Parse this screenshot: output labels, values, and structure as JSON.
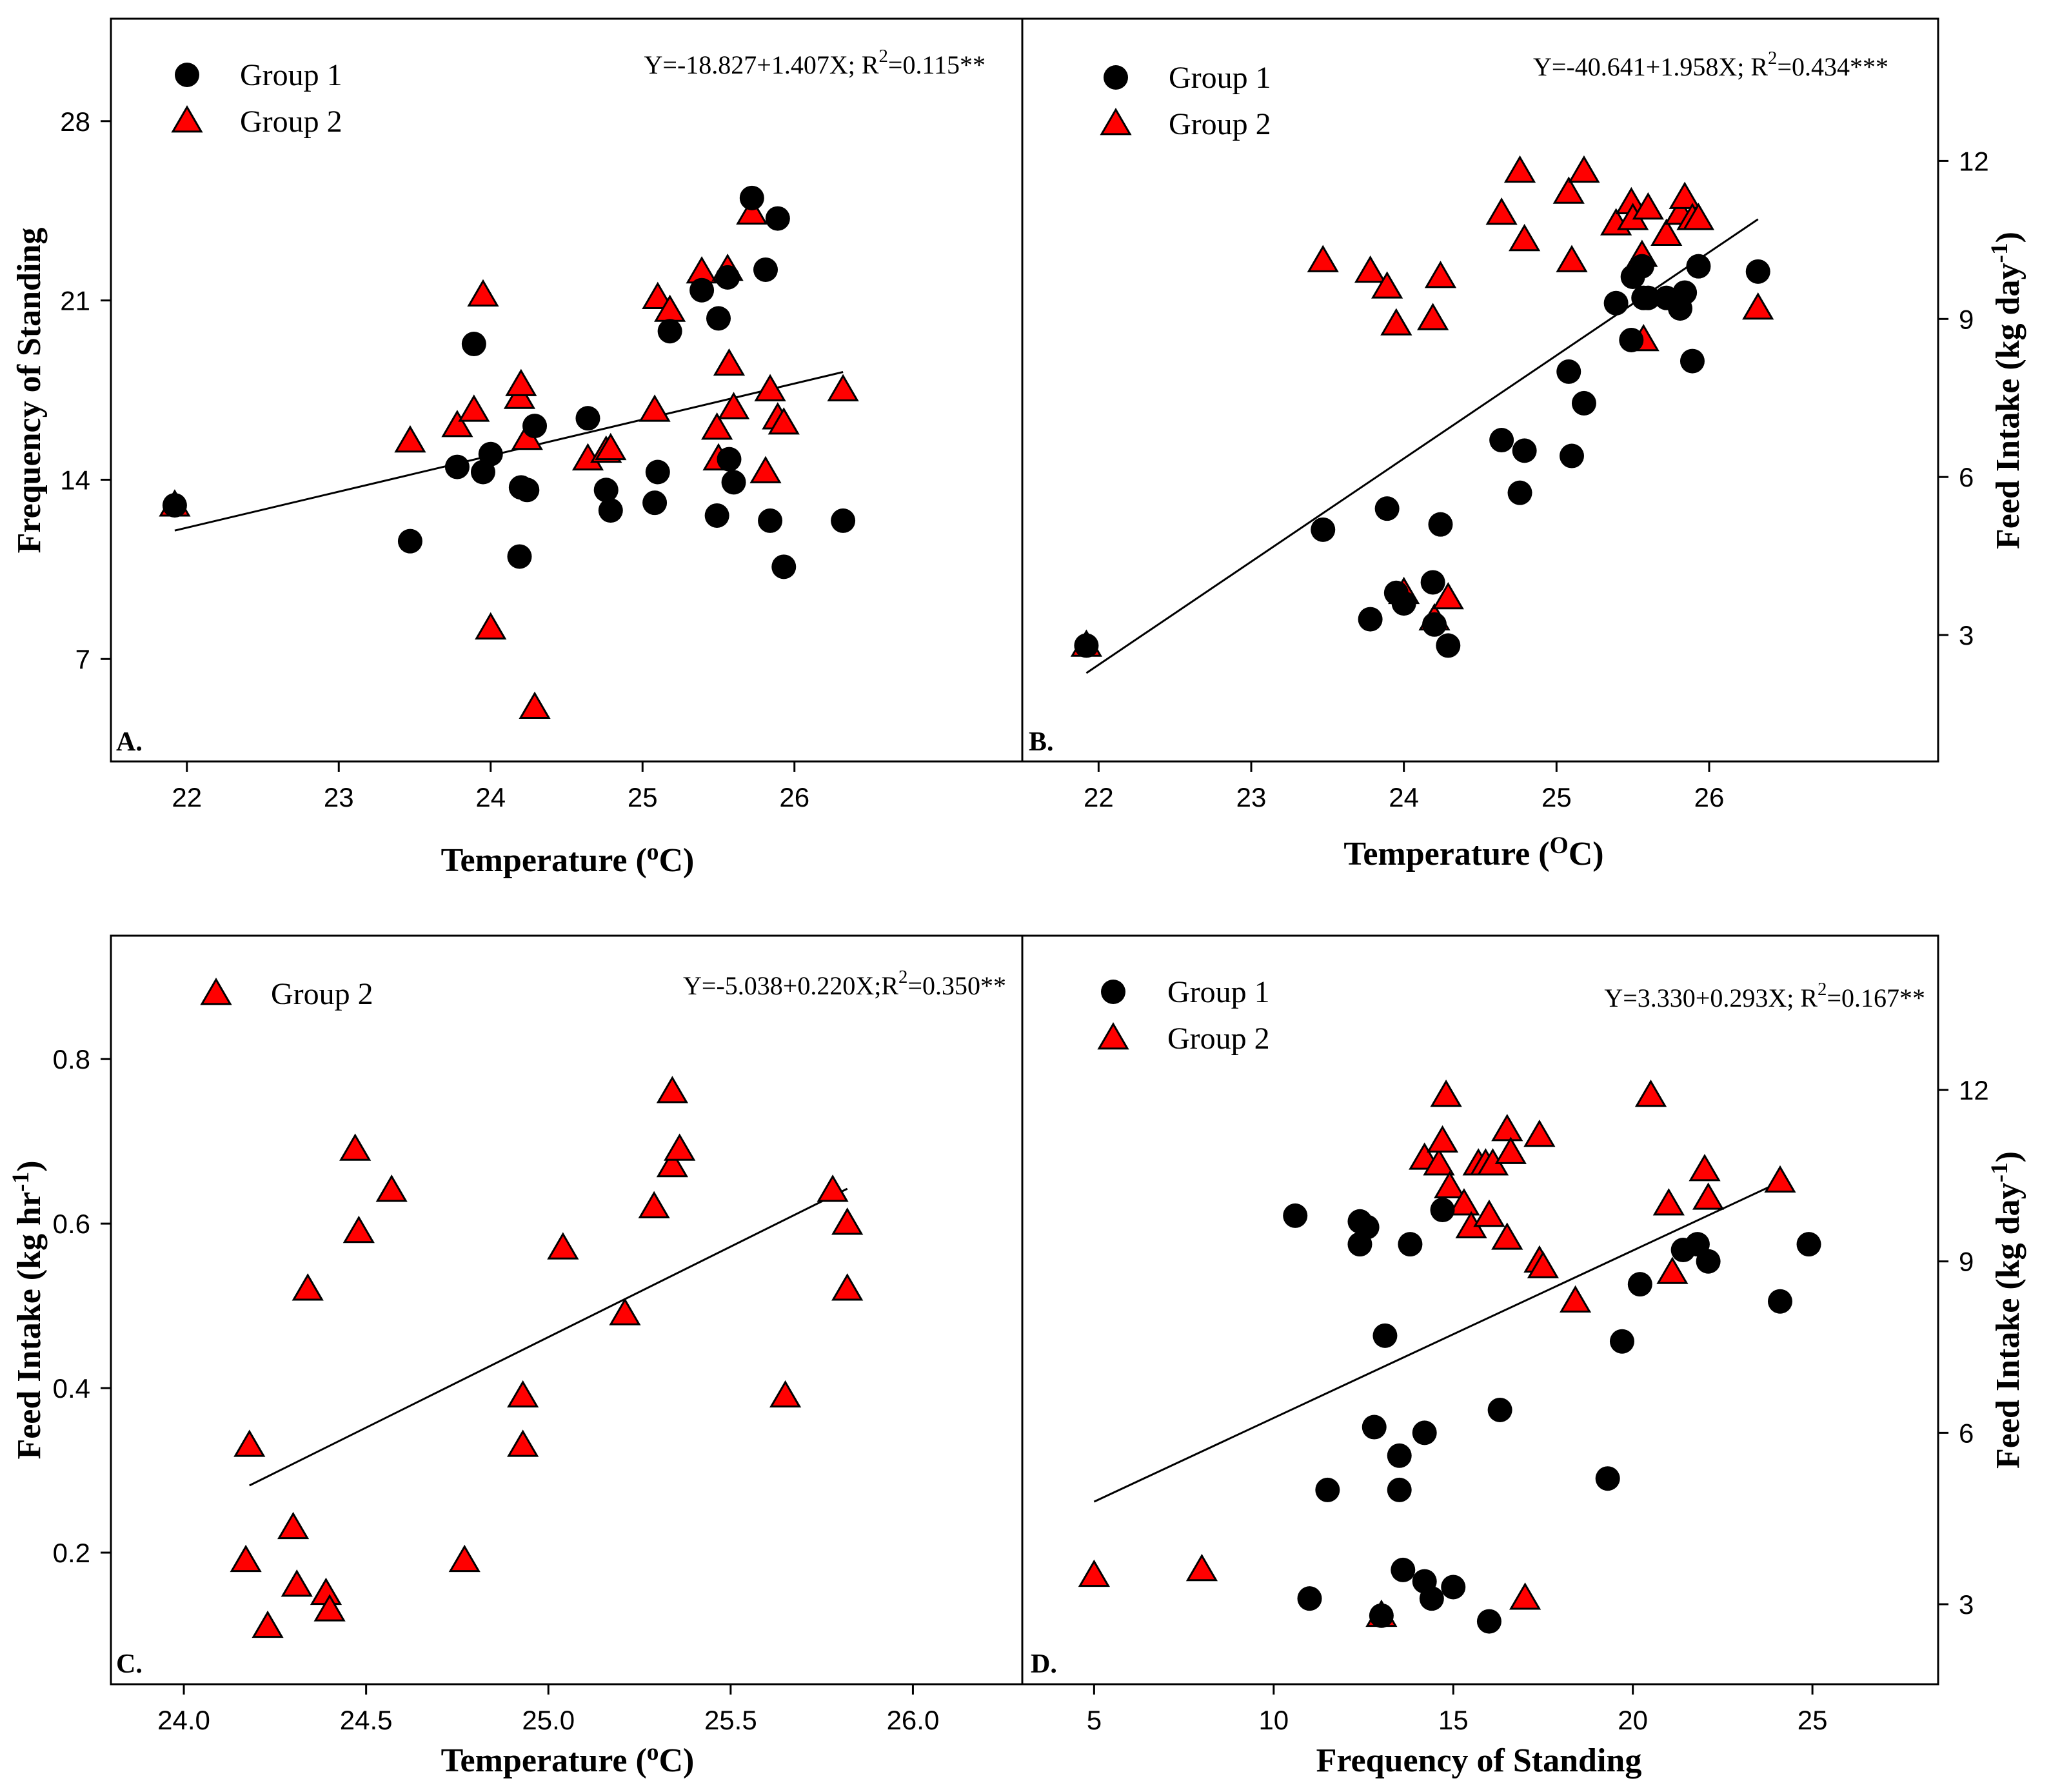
{
  "figure": {
    "background": "#ffffff",
    "group1_color": "#000000",
    "group2_color": "#ff0000"
  },
  "chart_data": [
    {
      "panel": "A",
      "type": "scatter",
      "xlabel": "Temperature (oC)",
      "xlabel_parts": {
        "pre": "Temperature (",
        "sup": "o",
        "post": "C)"
      },
      "ylabel": "Frequency of Standing",
      "xlim": [
        21.5,
        27.5
      ],
      "ylim": [
        3.0,
        32.0
      ],
      "xticks": [
        22,
        23,
        24,
        25,
        26
      ],
      "yticks": [
        7,
        14,
        21,
        28
      ],
      "equation": {
        "pre": "Y=-18.827+1.407X; R",
        "sup": "2",
        "post": "=0.115**"
      },
      "legend": [
        "Group 1",
        "Group 2"
      ],
      "regression": {
        "intercept": -18.827,
        "slope": 1.407,
        "x_range": [
          21.92,
          26.32
        ]
      },
      "series": [
        {
          "name": "Group 1",
          "marker": "circle",
          "points": [
            [
              21.92,
              13.0
            ],
            [
              23.47,
              11.6
            ],
            [
              23.78,
              14.5
            ],
            [
              23.89,
              19.3
            ],
            [
              23.95,
              14.3
            ],
            [
              24.0,
              15.0
            ],
            [
              24.19,
              11.0
            ],
            [
              24.2,
              13.7
            ],
            [
              24.24,
              13.6
            ],
            [
              24.29,
              16.1
            ],
            [
              24.64,
              16.4
            ],
            [
              24.76,
              13.6
            ],
            [
              24.79,
              12.8
            ],
            [
              25.08,
              13.1
            ],
            [
              25.1,
              14.3
            ],
            [
              25.18,
              19.8
            ],
            [
              25.39,
              21.4
            ],
            [
              25.49,
              12.6
            ],
            [
              25.5,
              20.3
            ],
            [
              25.56,
              21.9
            ],
            [
              25.57,
              14.8
            ],
            [
              25.6,
              13.9
            ],
            [
              25.72,
              25.0
            ],
            [
              25.81,
              22.2
            ],
            [
              25.84,
              12.4
            ],
            [
              25.89,
              24.2
            ],
            [
              25.93,
              10.6
            ],
            [
              26.32,
              12.4
            ]
          ]
        },
        {
          "name": "Group 2",
          "marker": "triangle",
          "points": [
            [
              21.92,
              13.0
            ],
            [
              23.47,
              15.5
            ],
            [
              23.78,
              16.1
            ],
            [
              23.89,
              16.7
            ],
            [
              23.95,
              21.2
            ],
            [
              24.0,
              8.2
            ],
            [
              24.19,
              17.2
            ],
            [
              24.2,
              17.7
            ],
            [
              24.24,
              15.6
            ],
            [
              24.29,
              5.1
            ],
            [
              24.64,
              14.8
            ],
            [
              24.76,
              15.1
            ],
            [
              24.79,
              15.2
            ],
            [
              25.08,
              16.7
            ],
            [
              25.1,
              21.1
            ],
            [
              25.18,
              20.6
            ],
            [
              25.39,
              22.1
            ],
            [
              25.49,
              16.0
            ],
            [
              25.5,
              14.8
            ],
            [
              25.56,
              22.2
            ],
            [
              25.57,
              18.5
            ],
            [
              25.6,
              16.8
            ],
            [
              25.72,
              24.4
            ],
            [
              25.81,
              14.3
            ],
            [
              25.84,
              17.5
            ],
            [
              25.89,
              16.4
            ],
            [
              25.93,
              16.2
            ],
            [
              26.32,
              17.5
            ]
          ]
        }
      ]
    },
    {
      "panel": "B",
      "type": "scatter",
      "xlabel": "Temperature (OC)",
      "xlabel_parts": {
        "pre": "Temperature (",
        "sup": "O",
        "post": "C)"
      },
      "ylabel": "Feed Intake (kg day-1)",
      "ylabel_parts": {
        "pre": "Feed Intake (kg day",
        "sup": "-1",
        "post": ")"
      },
      "xlim": [
        21.5,
        27.5
      ],
      "ylim": [
        0.6,
        14.7
      ],
      "xticks": [
        22,
        23,
        24,
        25,
        26
      ],
      "yticks": [
        3,
        6,
        9,
        12
      ],
      "equation": {
        "pre": "Y=-40.641+1.958X; R",
        "sup": "2",
        "post": "=0.434***"
      },
      "legend": [
        "Group 1",
        "Group 2"
      ],
      "regression": {
        "intercept": -40.641,
        "slope": 1.958,
        "x_range": [
          21.92,
          26.32
        ]
      },
      "series": [
        {
          "name": "Group 1",
          "marker": "circle",
          "points": [
            [
              21.92,
              2.8
            ],
            [
              23.47,
              5.0
            ],
            [
              23.78,
              3.3
            ],
            [
              23.89,
              5.4
            ],
            [
              23.95,
              3.8
            ],
            [
              24.0,
              3.6
            ],
            [
              24.19,
              4.0
            ],
            [
              24.2,
              3.2
            ],
            [
              24.24,
              5.1
            ],
            [
              24.29,
              2.8
            ],
            [
              24.64,
              6.7
            ],
            [
              24.76,
              5.7
            ],
            [
              24.79,
              6.5
            ],
            [
              25.08,
              8.0
            ],
            [
              25.1,
              6.4
            ],
            [
              25.18,
              7.4
            ],
            [
              25.39,
              9.3
            ],
            [
              25.49,
              8.6
            ],
            [
              25.5,
              9.8
            ],
            [
              25.56,
              10.0
            ],
            [
              25.57,
              9.4
            ],
            [
              25.6,
              9.4
            ],
            [
              25.72,
              9.4
            ],
            [
              25.81,
              9.2
            ],
            [
              25.84,
              9.5
            ],
            [
              25.89,
              8.2
            ],
            [
              25.93,
              10.0
            ],
            [
              26.32,
              9.9
            ]
          ]
        },
        {
          "name": "Group 2",
          "marker": "triangle",
          "points": [
            [
              21.92,
              2.8
            ],
            [
              23.47,
              10.1
            ],
            [
              23.78,
              9.9
            ],
            [
              23.89,
              9.6
            ],
            [
              23.95,
              8.9
            ],
            [
              24.0,
              3.8
            ],
            [
              24.19,
              9.0
            ],
            [
              24.2,
              3.3
            ],
            [
              24.24,
              9.8
            ],
            [
              24.29,
              3.7
            ],
            [
              24.64,
              11.0
            ],
            [
              24.76,
              11.8
            ],
            [
              24.79,
              10.5
            ],
            [
              25.08,
              11.4
            ],
            [
              25.1,
              10.1
            ],
            [
              25.18,
              11.8
            ],
            [
              25.39,
              10.8
            ],
            [
              25.49,
              11.2
            ],
            [
              25.5,
              10.9
            ],
            [
              25.56,
              10.2
            ],
            [
              25.57,
              8.6
            ],
            [
              25.6,
              11.1
            ],
            [
              25.72,
              10.6
            ],
            [
              25.81,
              11.0
            ],
            [
              25.84,
              11.3
            ],
            [
              25.89,
              10.9
            ],
            [
              25.93,
              10.9
            ],
            [
              26.32,
              9.2
            ]
          ]
        }
      ]
    },
    {
      "panel": "C",
      "type": "scatter",
      "xlabel": "Temperature (oC)",
      "xlabel_parts": {
        "pre": "Temperature (",
        "sup": "o",
        "post": "C)"
      },
      "ylabel": "Feed Intake (kg hr-1)",
      "ylabel_parts": {
        "pre": "Feed Intake (kg hr",
        "sup": "-1",
        "post": ")"
      },
      "xlim": [
        23.8,
        26.3
      ],
      "ylim": [
        0.04,
        0.95
      ],
      "xticks": [
        24.0,
        24.5,
        25.0,
        25.5,
        26.0
      ],
      "yticks": [
        0.2,
        0.4,
        0.6,
        0.8
      ],
      "equation": {
        "pre": "Y=-5.038+0.220X;R",
        "sup": "2",
        "post": "=0.350**"
      },
      "legend": [
        "Group 2"
      ],
      "regression": {
        "intercept": -5.038,
        "slope": 0.22,
        "x_range": [
          24.18,
          25.82
        ]
      },
      "series": [
        {
          "name": "Group 2",
          "marker": "triangle",
          "points": [
            [
              24.18,
              0.33
            ],
            [
              24.17,
              0.19
            ],
            [
              24.23,
              0.11
            ],
            [
              24.3,
              0.23
            ],
            [
              24.31,
              0.16
            ],
            [
              24.34,
              0.52
            ],
            [
              24.39,
              0.15
            ],
            [
              24.4,
              0.13
            ],
            [
              24.47,
              0.69
            ],
            [
              24.48,
              0.59
            ],
            [
              24.57,
              0.64
            ],
            [
              24.77,
              0.19
            ],
            [
              24.93,
              0.39
            ],
            [
              24.93,
              0.33
            ],
            [
              25.04,
              0.57
            ],
            [
              25.21,
              0.49
            ],
            [
              25.29,
              0.62
            ],
            [
              25.34,
              0.76
            ],
            [
              25.34,
              0.67
            ],
            [
              25.36,
              0.69
            ],
            [
              25.65,
              0.39
            ],
            [
              25.78,
              0.64
            ],
            [
              25.82,
              0.6
            ],
            [
              25.82,
              0.52
            ]
          ]
        }
      ]
    },
    {
      "panel": "D",
      "type": "scatter",
      "xlabel": "Frequency of Standing",
      "ylabel": "Feed Intake (kg day-1)",
      "ylabel_parts": {
        "pre": "Feed Intake (kg day",
        "sup": "-1",
        "post": ")"
      },
      "xlim": [
        3.0,
        28.5
      ],
      "ylim": [
        1.6,
        14.7
      ],
      "xticks": [
        5,
        10,
        15,
        20,
        25
      ],
      "yticks": [
        3,
        6,
        9,
        12
      ],
      "equation": {
        "pre": "Y=3.330+0.293X; R",
        "sup": "2",
        "post": "=0.167**"
      },
      "legend": [
        "Group 1",
        "Group 2"
      ],
      "regression": {
        "intercept": 3.33,
        "slope": 0.293,
        "x_range": [
          5.0,
          24.1
        ]
      },
      "series": [
        {
          "name": "Group 1",
          "marker": "circle",
          "points": [
            [
              10.6,
              9.8
            ],
            [
              11.0,
              3.1
            ],
            [
              11.5,
              5.0
            ],
            [
              12.4,
              9.7
            ],
            [
              12.4,
              9.3
            ],
            [
              12.6,
              9.6
            ],
            [
              12.8,
              6.1
            ],
            [
              13.0,
              2.8
            ],
            [
              13.1,
              7.7
            ],
            [
              13.5,
              5.0
            ],
            [
              13.5,
              5.6
            ],
            [
              13.6,
              3.6
            ],
            [
              13.8,
              9.3
            ],
            [
              14.2,
              3.4
            ],
            [
              14.2,
              6.0
            ],
            [
              14.4,
              3.1
            ],
            [
              14.7,
              9.9
            ],
            [
              15.0,
              3.3
            ],
            [
              16.0,
              2.7
            ],
            [
              16.3,
              6.4
            ],
            [
              19.3,
              5.2
            ],
            [
              19.7,
              7.6
            ],
            [
              20.2,
              8.6
            ],
            [
              21.4,
              9.2
            ],
            [
              21.8,
              9.3
            ],
            [
              22.1,
              9.0
            ],
            [
              24.1,
              8.3
            ],
            [
              24.9,
              9.3
            ]
          ]
        },
        {
          "name": "Group 2",
          "marker": "triangle",
          "points": [
            [
              5.0,
              3.5
            ],
            [
              8.0,
              3.6
            ],
            [
              13.0,
              2.8
            ],
            [
              14.2,
              10.8
            ],
            [
              14.6,
              10.7
            ],
            [
              14.7,
              11.1
            ],
            [
              14.8,
              11.9
            ],
            [
              14.9,
              10.3
            ],
            [
              15.3,
              10.0
            ],
            [
              15.5,
              9.6
            ],
            [
              15.7,
              10.7
            ],
            [
              15.9,
              10.7
            ],
            [
              16.0,
              9.8
            ],
            [
              16.1,
              10.7
            ],
            [
              16.5,
              9.4
            ],
            [
              16.5,
              11.3
            ],
            [
              16.6,
              10.9
            ],
            [
              17.0,
              3.1
            ],
            [
              17.4,
              11.2
            ],
            [
              17.4,
              9.0
            ],
            [
              17.5,
              8.9
            ],
            [
              18.4,
              8.3
            ],
            [
              20.5,
              11.9
            ],
            [
              21.0,
              10.0
            ],
            [
              21.1,
              8.8
            ],
            [
              22.0,
              10.6
            ],
            [
              22.1,
              10.1
            ],
            [
              24.1,
              10.4
            ]
          ]
        }
      ]
    }
  ]
}
